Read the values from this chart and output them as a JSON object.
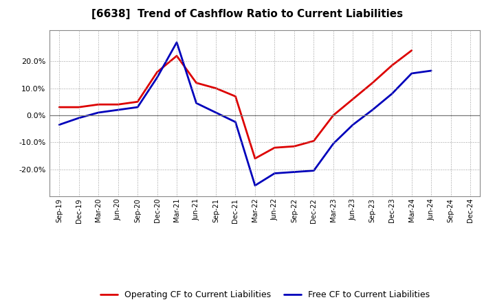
{
  "title": "[6638]  Trend of Cashflow Ratio to Current Liabilities",
  "x_labels": [
    "Sep-19",
    "Dec-19",
    "Mar-20",
    "Jun-20",
    "Sep-20",
    "Dec-20",
    "Mar-21",
    "Jun-21",
    "Sep-21",
    "Dec-21",
    "Mar-22",
    "Jun-22",
    "Sep-22",
    "Dec-22",
    "Mar-23",
    "Jun-23",
    "Sep-23",
    "Dec-23",
    "Mar-24",
    "Jun-24",
    "Sep-24",
    "Dec-24"
  ],
  "operating_cf": [
    0.03,
    0.03,
    0.04,
    0.04,
    0.05,
    0.16,
    0.22,
    0.12,
    0.1,
    0.07,
    -0.16,
    -0.12,
    -0.115,
    -0.095,
    0.0,
    0.06,
    0.12,
    0.185,
    0.24,
    null,
    null,
    null
  ],
  "free_cf": [
    -0.035,
    -0.01,
    0.01,
    0.02,
    0.03,
    0.14,
    0.27,
    0.045,
    0.01,
    -0.025,
    -0.26,
    -0.215,
    -0.21,
    -0.205,
    -0.105,
    -0.035,
    0.02,
    0.08,
    0.155,
    0.165,
    null,
    null
  ],
  "operating_cf_color": "#dd0000",
  "free_cf_color": "#0000bb",
  "background_color": "#ffffff",
  "plot_bg_color": "#ffffff",
  "grid_color": "#999999",
  "ylim": [
    -0.3,
    0.315
  ],
  "yticks": [
    -0.2,
    -0.1,
    0.0,
    0.1,
    0.2
  ],
  "legend_operating": "Operating CF to Current Liabilities",
  "legend_free": "Free CF to Current Liabilities"
}
